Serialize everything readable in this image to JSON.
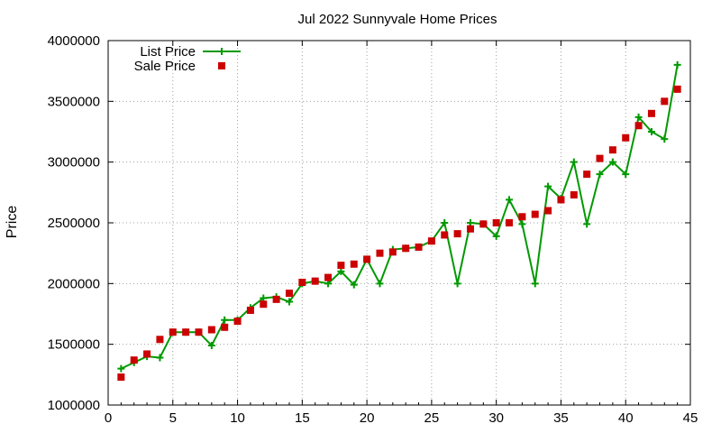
{
  "chart_data": {
    "type": "line",
    "title": "Jul 2022 Sunnyvale Home Prices",
    "xlabel": "",
    "ylabel": "Price",
    "xlim": [
      0,
      45
    ],
    "ylim": [
      1000000,
      4000000
    ],
    "xticks": [
      0,
      5,
      10,
      15,
      20,
      25,
      30,
      35,
      40,
      45
    ],
    "yticks": [
      1000000,
      1500000,
      2000000,
      2500000,
      3000000,
      3500000,
      4000000
    ],
    "grid": true,
    "legend_position": "top-left",
    "x": [
      1,
      2,
      3,
      4,
      5,
      6,
      7,
      8,
      9,
      10,
      11,
      12,
      13,
      14,
      15,
      16,
      17,
      18,
      19,
      20,
      21,
      22,
      23,
      24,
      25,
      26,
      27,
      28,
      29,
      30,
      31,
      32,
      33,
      34,
      35,
      36,
      37,
      38,
      39,
      40,
      41,
      42,
      43,
      44
    ],
    "series": [
      {
        "name": "List Price",
        "style": "line-plus",
        "color": "#009900",
        "values": [
          1300000,
          1350000,
          1400000,
          1390000,
          1600000,
          1600000,
          1600000,
          1490000,
          1700000,
          1700000,
          1800000,
          1880000,
          1890000,
          1850000,
          2000000,
          2020000,
          2000000,
          2100000,
          1990000,
          2200000,
          2000000,
          2280000,
          2290000,
          2300000,
          2350000,
          2500000,
          2000000,
          2500000,
          2490000,
          2390000,
          2690000,
          2490000,
          2000000,
          2800000,
          2700000,
          3000000,
          2490000,
          2900000,
          3000000,
          2900000,
          3370000,
          3250000,
          3190000,
          3800000
        ]
      },
      {
        "name": "Sale Price",
        "style": "square-points",
        "color": "#cc0000",
        "values": [
          1230000,
          1370000,
          1420000,
          1540000,
          1600000,
          1600000,
          1600000,
          1620000,
          1640000,
          1690000,
          1780000,
          1830000,
          1870000,
          1920000,
          2010000,
          2020000,
          2050000,
          2150000,
          2160000,
          2200000,
          2250000,
          2260000,
          2290000,
          2300000,
          2350000,
          2400000,
          2410000,
          2450000,
          2490000,
          2500000,
          2500000,
          2550000,
          2570000,
          2600000,
          2690000,
          2730000,
          2900000,
          3030000,
          3100000,
          3200000,
          3300000,
          3400000,
          3500000,
          3600000
        ]
      }
    ]
  }
}
